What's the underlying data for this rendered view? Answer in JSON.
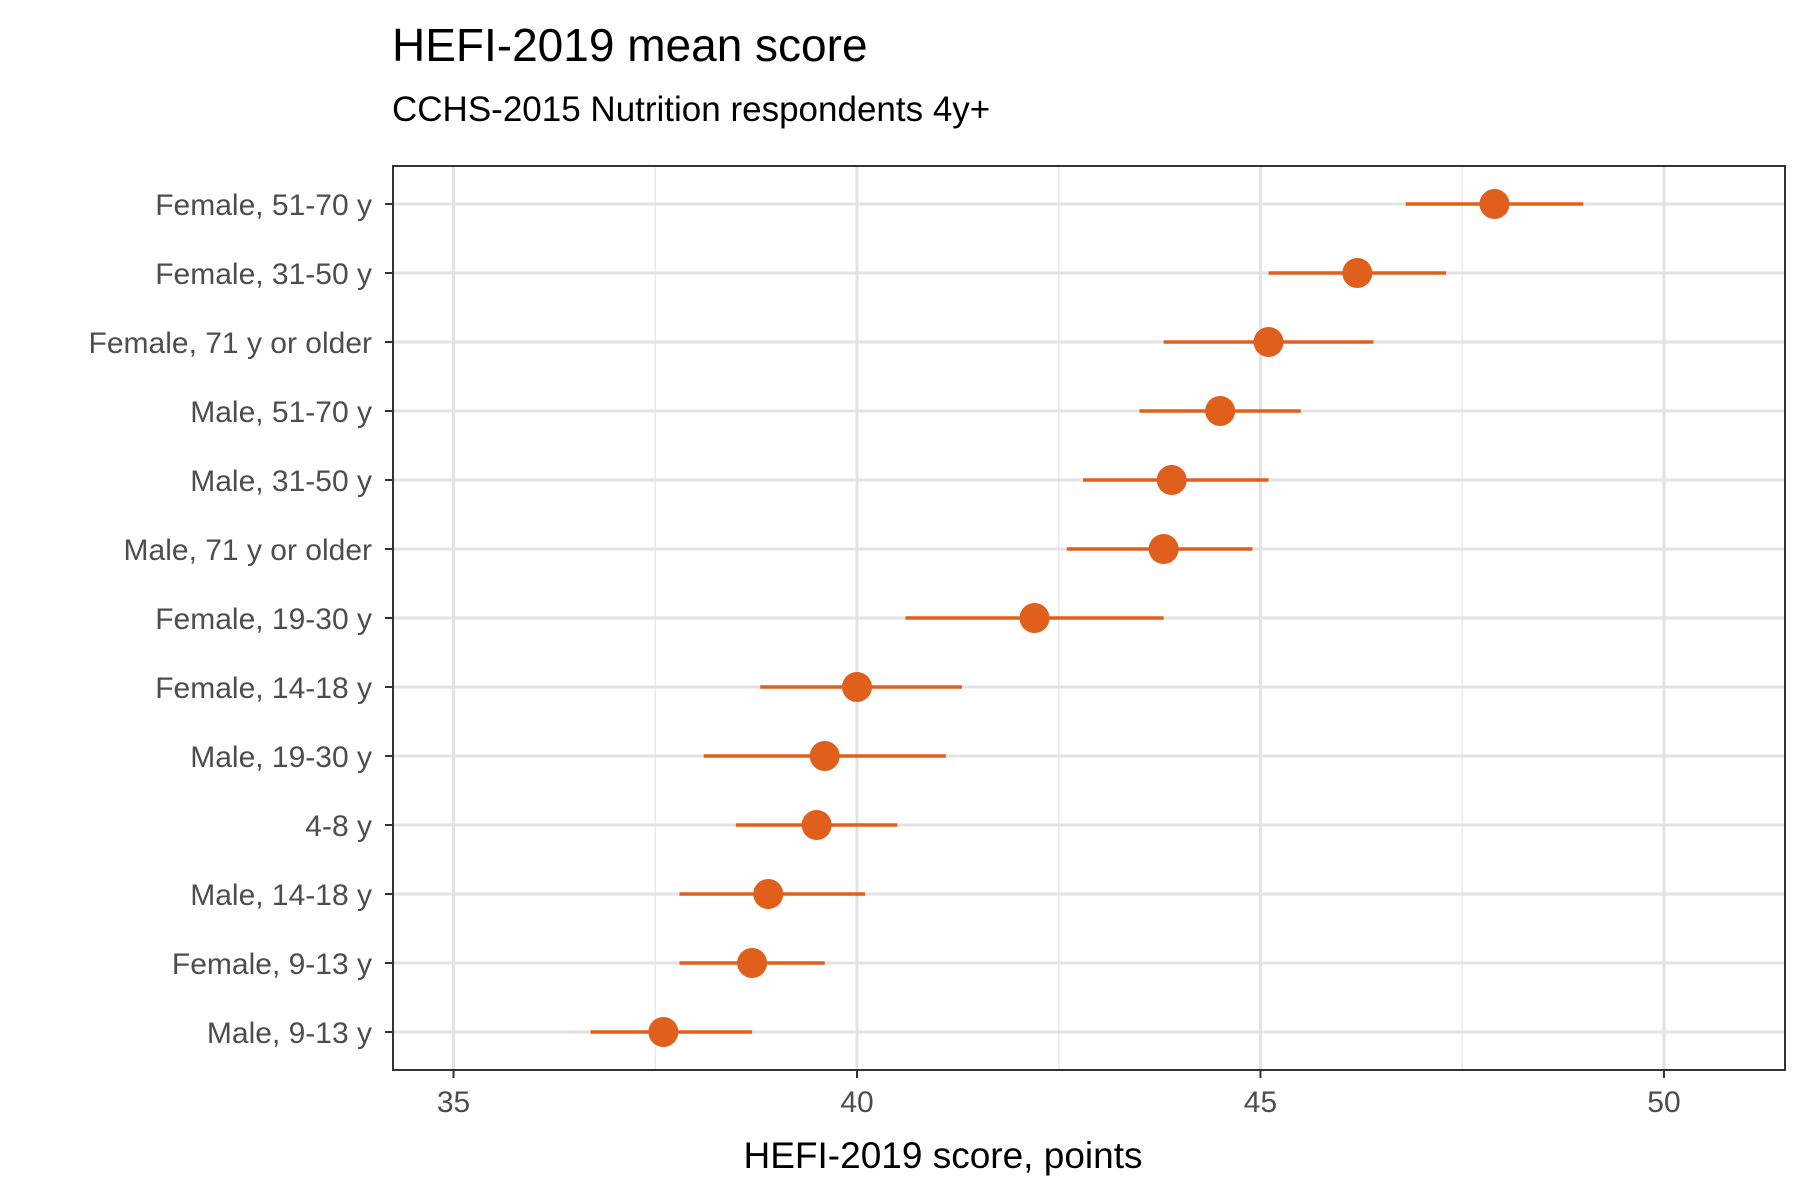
{
  "chart_data": {
    "type": "scatter",
    "title": "HEFI-2019 mean score",
    "subtitle": "CCHS-2015 Nutrition respondents 4y+",
    "xlabel": "HEFI-2019 score, points",
    "ylabel": "",
    "xlim": [
      34.25,
      51.5
    ],
    "xticks": [
      35,
      40,
      45,
      50
    ],
    "grid": true,
    "legend": "none",
    "point_color": "#E05F1D",
    "categories": [
      "Female, 51-70 y",
      "Female, 31-50 y",
      "Female, 71 y or older",
      "Male, 51-70 y",
      "Male, 31-50 y",
      "Male, 71 y or older",
      "Female, 19-30 y",
      "Female, 14-18 y",
      "Male, 19-30 y",
      "4-8 y",
      "Male, 14-18 y",
      "Female, 9-13 y",
      "Male, 9-13 y"
    ],
    "values": [
      47.9,
      46.2,
      45.1,
      44.5,
      43.9,
      43.8,
      42.2,
      40.0,
      39.6,
      39.5,
      38.9,
      38.7,
      37.6
    ],
    "lower": [
      46.8,
      45.1,
      43.8,
      43.5,
      42.8,
      42.6,
      40.6,
      38.8,
      38.1,
      38.5,
      37.8,
      37.8,
      36.7
    ],
    "upper": [
      49.0,
      47.3,
      46.4,
      45.5,
      45.1,
      44.9,
      43.8,
      41.3,
      41.1,
      40.5,
      40.1,
      39.6,
      38.7
    ]
  }
}
